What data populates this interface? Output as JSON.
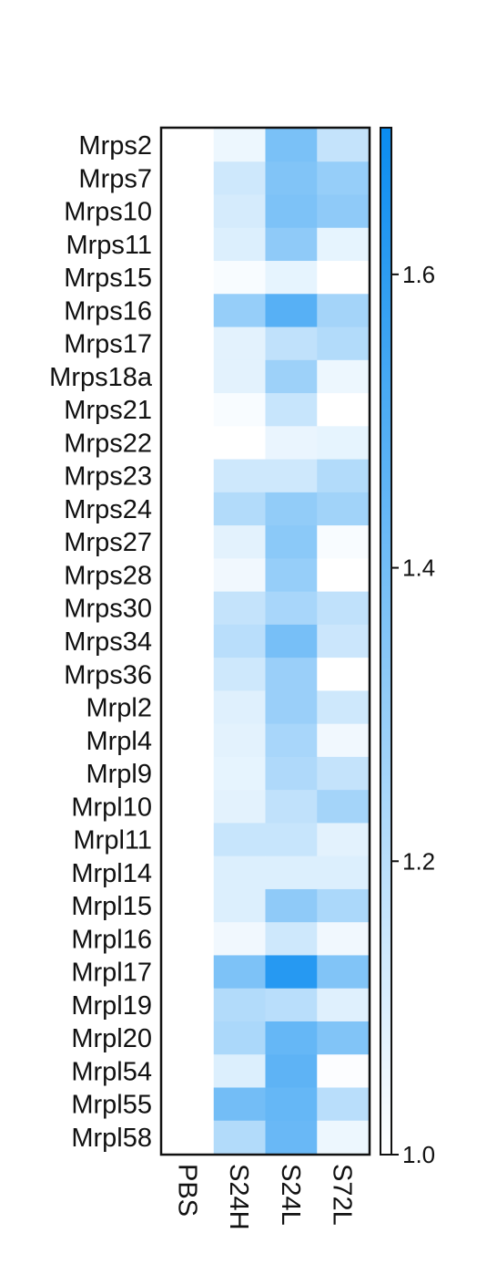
{
  "chart_data": {
    "type": "heatmap",
    "rows": [
      "Mrps2",
      "Mrps7",
      "Mrps10",
      "Mrps11",
      "Mrps15",
      "Mrps16",
      "Mrps17",
      "Mrps18a",
      "Mrps21",
      "Mrps22",
      "Mrps23",
      "Mrps24",
      "Mrps27",
      "Mrps28",
      "Mrps30",
      "Mrps34",
      "Mrps36",
      "Mrpl2",
      "Mrpl4",
      "Mrpl9",
      "Mrpl10",
      "Mrpl11",
      "Mrpl14",
      "Mrpl15",
      "Mrpl16",
      "Mrpl17",
      "Mrpl19",
      "Mrpl20",
      "Mrpl54",
      "Mrpl55",
      "Mrpl58"
    ],
    "columns": [
      "PBS",
      "S24H",
      "S24L",
      "S72L"
    ],
    "values": [
      [
        1.0,
        1.05,
        1.38,
        1.17
      ],
      [
        1.0,
        1.14,
        1.36,
        1.3
      ],
      [
        1.0,
        1.12,
        1.37,
        1.32
      ],
      [
        1.0,
        1.1,
        1.32,
        1.07
      ],
      [
        1.0,
        1.02,
        1.07,
        1.0
      ],
      [
        1.0,
        1.3,
        1.48,
        1.26
      ],
      [
        1.0,
        1.08,
        1.18,
        1.22
      ],
      [
        1.0,
        1.08,
        1.28,
        1.05
      ],
      [
        1.0,
        1.02,
        1.16,
        1.0
      ],
      [
        1.0,
        1.0,
        1.06,
        1.07
      ],
      [
        1.0,
        1.14,
        1.14,
        1.22
      ],
      [
        1.0,
        1.22,
        1.31,
        1.27
      ],
      [
        1.0,
        1.08,
        1.33,
        1.02
      ],
      [
        1.0,
        1.04,
        1.3,
        1.0
      ],
      [
        1.0,
        1.17,
        1.25,
        1.18
      ],
      [
        1.0,
        1.2,
        1.39,
        1.15
      ],
      [
        1.0,
        1.14,
        1.29,
        1.0
      ],
      [
        1.0,
        1.09,
        1.29,
        1.14
      ],
      [
        1.0,
        1.08,
        1.25,
        1.04
      ],
      [
        1.0,
        1.07,
        1.23,
        1.17
      ],
      [
        1.0,
        1.08,
        1.18,
        1.26
      ],
      [
        1.0,
        1.16,
        1.16,
        1.08
      ],
      [
        1.0,
        1.1,
        1.1,
        1.1
      ],
      [
        1.0,
        1.1,
        1.32,
        1.24
      ],
      [
        1.0,
        1.04,
        1.14,
        1.04
      ],
      [
        1.0,
        1.37,
        1.62,
        1.36
      ],
      [
        1.0,
        1.22,
        1.2,
        1.09
      ],
      [
        1.0,
        1.24,
        1.44,
        1.36
      ],
      [
        1.0,
        1.1,
        1.46,
        1.01
      ],
      [
        1.0,
        1.4,
        1.44,
        1.2
      ],
      [
        1.0,
        1.22,
        1.43,
        1.05
      ]
    ],
    "colorbar": {
      "min": 1.0,
      "max": 1.7,
      "ticks": [
        1.0,
        1.2,
        1.4,
        1.6
      ],
      "tick_labels": [
        "1.0",
        "1.2",
        "1.4",
        "1.6"
      ],
      "color_low": "#ffffff",
      "color_high": "#0a8cf0"
    },
    "title": "",
    "xlabel": "",
    "ylabel": ""
  }
}
